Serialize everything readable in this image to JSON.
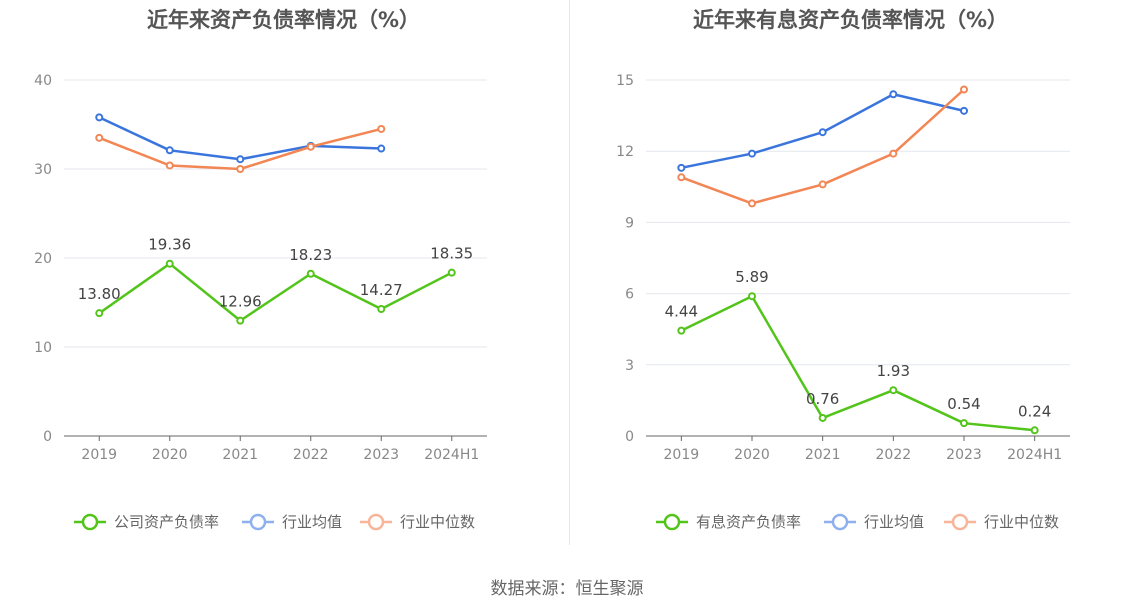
{
  "footer": {
    "source": "数据来源：恒生聚源"
  },
  "chart_data": [
    {
      "type": "line",
      "title": "近年来资产负债率情况（%）",
      "categories": [
        "2019",
        "2020",
        "2021",
        "2022",
        "2023",
        "2024H1"
      ],
      "ylim": [
        0,
        40
      ],
      "yticks": [
        0,
        10,
        20,
        30,
        40
      ],
      "series": [
        {
          "name": "公司资产负债率",
          "color": "#52c41a",
          "labeled": true,
          "values": [
            13.8,
            19.36,
            12.96,
            18.23,
            14.27,
            18.35
          ],
          "labels": [
            "13.80",
            "19.36",
            "12.96",
            "18.23",
            "14.27",
            "18.35"
          ]
        },
        {
          "name": "行业均值",
          "color": "#3a75dd",
          "labeled": false,
          "values": [
            35.8,
            32.1,
            31.1,
            32.6,
            32.3,
            null
          ]
        },
        {
          "name": "行业中位数",
          "color": "#f28654",
          "labeled": false,
          "values": [
            33.5,
            30.4,
            30.0,
            32.5,
            34.5,
            null
          ]
        }
      ],
      "legend": [
        {
          "name": "公司资产负债率",
          "color": "#52c41a"
        },
        {
          "name": "行业均值",
          "color": "#8fb0ee"
        },
        {
          "name": "行业中位数",
          "color": "#f7b599"
        }
      ]
    },
    {
      "type": "line",
      "title": "近年来有息资产负债率情况（%）",
      "categories": [
        "2019",
        "2020",
        "2021",
        "2022",
        "2023",
        "2024H1"
      ],
      "ylim": [
        0,
        15
      ],
      "yticks": [
        0,
        3,
        6,
        9,
        12,
        15
      ],
      "series": [
        {
          "name": "有息资产负债率",
          "color": "#52c41a",
          "labeled": true,
          "values": [
            4.44,
            5.89,
            0.76,
            1.93,
            0.54,
            0.24
          ],
          "labels": [
            "4.44",
            "5.89",
            "0.76",
            "1.93",
            "0.54",
            "0.24"
          ]
        },
        {
          "name": "行业均值",
          "color": "#3a75dd",
          "labeled": false,
          "values": [
            11.3,
            11.9,
            12.8,
            14.4,
            13.7,
            null
          ]
        },
        {
          "name": "行业中位数",
          "color": "#f28654",
          "labeled": false,
          "values": [
            10.9,
            9.8,
            10.6,
            11.9,
            14.6,
            null
          ]
        }
      ],
      "legend": [
        {
          "name": "有息资产负债率",
          "color": "#52c41a"
        },
        {
          "name": "行业均值",
          "color": "#8fb0ee"
        },
        {
          "name": "行业中位数",
          "color": "#f7b599"
        }
      ]
    }
  ]
}
